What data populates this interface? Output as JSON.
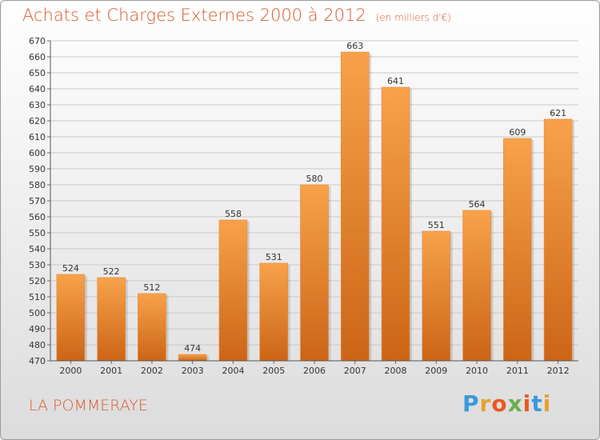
{
  "header": {
    "title": "Achats et Charges Externes 2000 à 2012",
    "unit": "(en milliers d'€)"
  },
  "footer": {
    "commune": "LA POMMERAYE",
    "logo_letters": [
      "P",
      "r",
      "o",
      "x",
      "i",
      "t",
      "i"
    ],
    "logo_colors": [
      "#3a9ad9",
      "#e8a030",
      "#e85a20",
      "#6ab04c",
      "#e85a20",
      "#3a9ad9",
      "#e8a030"
    ]
  },
  "colors": {
    "bar_top": "#f7a24a",
    "bar_bottom": "#cc6516",
    "title": "#d65a2c"
  },
  "chart_data": {
    "type": "bar",
    "title": "Achats et Charges Externes 2000 à 2012",
    "subtitle": "(en milliers d'€)",
    "categories": [
      "2000",
      "2001",
      "2002",
      "2003",
      "2004",
      "2005",
      "2006",
      "2007",
      "2008",
      "2009",
      "2010",
      "2011",
      "2012"
    ],
    "values": [
      524,
      522,
      512,
      474,
      558,
      531,
      580,
      663,
      641,
      551,
      564,
      609,
      621
    ],
    "ylim": [
      470,
      670
    ],
    "ytick_step": 10,
    "grid": true,
    "legend": "none"
  }
}
